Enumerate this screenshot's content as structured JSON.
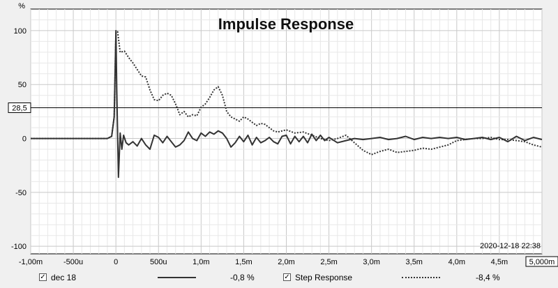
{
  "chart_data": {
    "type": "line",
    "title": "Impulse Response",
    "ylabel": "%",
    "xlim": [
      -1.0,
      5.0
    ],
    "ylim": [
      -107,
      120
    ],
    "x_tick_labels": [
      "-1,00m",
      "-500u",
      "0",
      "500u",
      "1,0m",
      "1,5m",
      "2,0m",
      "2,5m",
      "3,0m",
      "3,5m",
      "4,0m",
      "4,5m",
      "5,000m"
    ],
    "x_ticks": [
      -1.0,
      -0.5,
      0.0,
      0.5,
      1.0,
      1.5,
      2.0,
      2.5,
      3.0,
      3.5,
      4.0,
      4.5,
      5.0
    ],
    "y_tick_labels": [
      "100",
      "50",
      "0",
      "-50",
      "-100"
    ],
    "y_ticks": [
      100,
      50,
      0,
      -50,
      -100
    ],
    "cursor": {
      "value": 28.5,
      "label": "28,5"
    },
    "timestamp": "2020-12-18 22:38",
    "grid": true,
    "series": [
      {
        "name": "dec 18",
        "style": "solid",
        "readout": "-0,8 %",
        "x": [
          -1.0,
          -0.1,
          -0.05,
          -0.02,
          0.0,
          0.01,
          0.03,
          0.05,
          0.07,
          0.09,
          0.12,
          0.15,
          0.2,
          0.25,
          0.3,
          0.35,
          0.4,
          0.45,
          0.5,
          0.55,
          0.6,
          0.65,
          0.7,
          0.75,
          0.8,
          0.85,
          0.9,
          0.95,
          1.0,
          1.05,
          1.1,
          1.15,
          1.2,
          1.25,
          1.3,
          1.35,
          1.4,
          1.45,
          1.5,
          1.55,
          1.6,
          1.65,
          1.7,
          1.75,
          1.8,
          1.85,
          1.9,
          1.95,
          2.0,
          2.05,
          2.1,
          2.15,
          2.2,
          2.25,
          2.3,
          2.35,
          2.4,
          2.45,
          2.5,
          2.6,
          2.7,
          2.8,
          2.9,
          3.0,
          3.1,
          3.2,
          3.3,
          3.4,
          3.5,
          3.6,
          3.7,
          3.8,
          3.9,
          4.0,
          4.1,
          4.2,
          4.3,
          4.4,
          4.5,
          4.6,
          4.7,
          4.8,
          4.9,
          5.0
        ],
        "y": [
          0,
          0,
          2,
          20,
          100,
          45,
          -36,
          5,
          -10,
          3,
          -4,
          -6,
          -3,
          -7,
          0,
          -6,
          -10,
          3,
          1,
          -4,
          2,
          -3,
          -8,
          -6,
          -2,
          6,
          0,
          -2,
          5,
          2,
          6,
          4,
          7,
          5,
          0,
          -8,
          -4,
          2,
          -3,
          3,
          -6,
          1,
          -4,
          -2,
          1,
          -3,
          -5,
          2,
          3,
          -5,
          2,
          -3,
          2,
          -4,
          4,
          -2,
          3,
          -2,
          1,
          -4,
          -2,
          0,
          -1,
          0,
          1,
          -1,
          0,
          2,
          -1,
          1,
          0,
          1,
          0,
          1,
          -1,
          0,
          1,
          -1,
          1,
          -3,
          2,
          -2,
          1,
          -1
        ]
      },
      {
        "name": "Step Response",
        "style": "dotted",
        "readout": "-8,4 %",
        "x": [
          -1.0,
          -0.1,
          -0.05,
          -0.02,
          0.0,
          0.02,
          0.05,
          0.1,
          0.15,
          0.2,
          0.25,
          0.3,
          0.35,
          0.4,
          0.45,
          0.5,
          0.55,
          0.6,
          0.65,
          0.7,
          0.75,
          0.8,
          0.85,
          0.9,
          0.95,
          1.0,
          1.05,
          1.1,
          1.15,
          1.2,
          1.25,
          1.3,
          1.35,
          1.4,
          1.45,
          1.5,
          1.55,
          1.6,
          1.65,
          1.7,
          1.75,
          1.8,
          1.85,
          1.9,
          2.0,
          2.1,
          2.2,
          2.3,
          2.4,
          2.5,
          2.6,
          2.7,
          2.8,
          2.9,
          3.0,
          3.1,
          3.2,
          3.3,
          3.4,
          3.5,
          3.6,
          3.7,
          3.8,
          3.9,
          4.0,
          4.1,
          4.2,
          4.3,
          4.4,
          4.5,
          4.6,
          4.7,
          4.8,
          4.9,
          5.0
        ],
        "y": [
          0,
          0,
          2,
          20,
          98,
          99,
          80,
          81,
          75,
          70,
          64,
          58,
          57,
          45,
          36,
          35,
          40,
          42,
          40,
          32,
          22,
          25,
          20,
          22,
          21,
          29,
          32,
          38,
          45,
          48,
          40,
          25,
          20,
          18,
          16,
          20,
          18,
          15,
          12,
          14,
          13,
          10,
          7,
          6,
          8,
          5,
          6,
          3,
          0,
          -2,
          0,
          3,
          -4,
          -11,
          -15,
          -12,
          -10,
          -13,
          -12,
          -11,
          -9,
          -10,
          -8,
          -6,
          -2,
          -1,
          0,
          0,
          1,
          -1,
          -1,
          -2,
          -3,
          -6,
          -8
        ]
      }
    ]
  },
  "legend": {
    "checkbox_mark": "✓"
  }
}
